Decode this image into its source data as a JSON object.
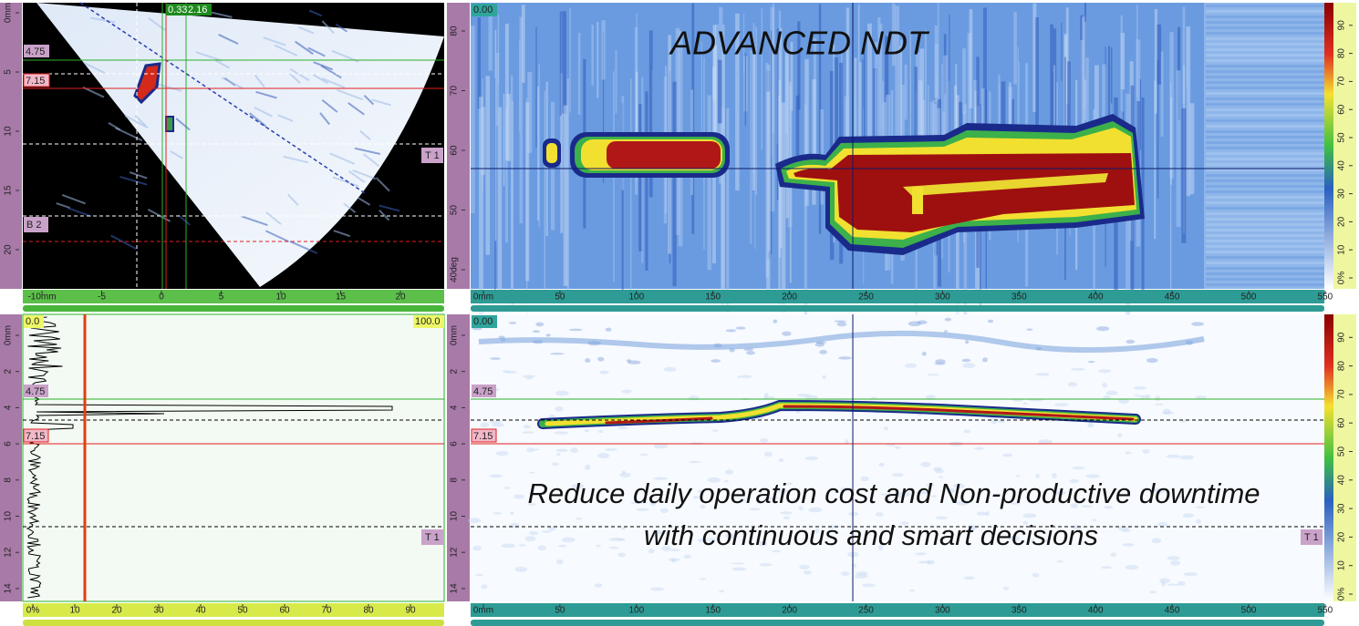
{
  "sectorial": {
    "cursor_labels": [
      "0.33",
      "2.16"
    ],
    "ref_label": "4.75",
    "meas_label": "7.15",
    "gate_label": "T 1",
    "bottom_label": "B 2",
    "v_ruler": [
      "0mm",
      "5",
      "10",
      "15",
      "20"
    ],
    "h_ruler": [
      "-10mm",
      "-5",
      "0",
      "5",
      "10",
      "15",
      "20"
    ]
  },
  "angle_view": {
    "origin_label": "0.00",
    "title": "ADVANCED NDT",
    "v_ruler": [
      "40deg",
      "50",
      "60",
      "70",
      "80"
    ],
    "h_ruler": [
      "0mm",
      "50",
      "100",
      "150",
      "200",
      "250",
      "300",
      "350",
      "400",
      "450",
      "500",
      "550"
    ],
    "palette_ruler": [
      "0%",
      "10",
      "20",
      "30",
      "40",
      "50",
      "60",
      "70",
      "80",
      "90"
    ]
  },
  "a_scan": {
    "min_label": "0.0",
    "max_label": "100.0",
    "ref_label": "4.75",
    "meas_label": "7.15",
    "gate_label": "T 1",
    "v_ruler": [
      "0mm",
      "2",
      "4",
      "6",
      "8",
      "10",
      "12",
      "14"
    ],
    "h_ruler": [
      "0%",
      "10",
      "20",
      "30",
      "40",
      "50",
      "60",
      "70",
      "80",
      "90"
    ]
  },
  "b_scan": {
    "origin_label": "0.00",
    "ref_label": "4.75",
    "meas_label": "7.15",
    "gate_label": "T 1",
    "caption_lines": [
      "Reduce daily operation cost and Non-productive downtime",
      "with continuous and smart decisions"
    ],
    "v_ruler": [
      "0mm",
      "2",
      "4",
      "6",
      "8",
      "10",
      "12",
      "14"
    ],
    "h_ruler": [
      "0mm",
      "50",
      "100",
      "150",
      "200",
      "250",
      "300",
      "350",
      "400",
      "450",
      "500",
      "550"
    ],
    "palette_ruler": [
      "0%",
      "10",
      "20",
      "30",
      "40",
      "50",
      "60",
      "70",
      "80",
      "90"
    ]
  }
}
